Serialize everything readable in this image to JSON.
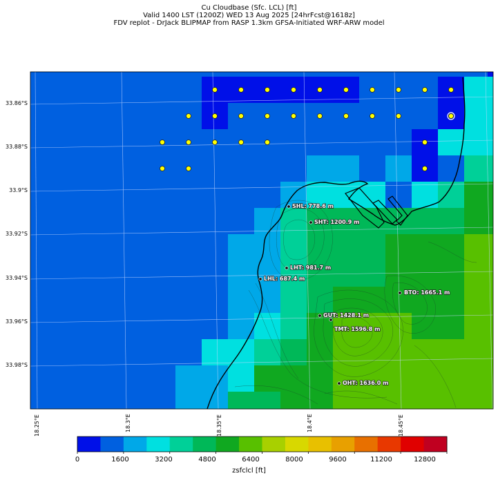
{
  "header": {
    "line1": "Cu Cloudbase (Sfc. LCL) [ft]",
    "line2": "Valid 1400 LST (1200Z) WED 13 Aug 2025 [24hrFcst@1618z]",
    "line3": "FDV replot - DrJack BLIPMAP from RASP 1.3km GFSA-Initiated WRF-ARW model"
  },
  "axes": {
    "lat_labels": [
      "33.86°S",
      "33.88°S",
      "33.9°S",
      "33.92°S",
      "33.94°S",
      "33.96°S",
      "33.98°S"
    ],
    "lon_labels": [
      "18.25°E",
      "18.3°E",
      "18.35°E",
      "18.4°E",
      "18.45°E"
    ]
  },
  "stations": [
    {
      "label": "SHL: 778.6 m"
    },
    {
      "label": "SHT: 1200.9 m"
    },
    {
      "label": "LHT: 981.7 m"
    },
    {
      "label": "LHL: 687.4 m"
    },
    {
      "label": "BTO: 1665.1 m"
    },
    {
      "label": "GUT: 1428.1 m"
    },
    {
      "label": "TMT: 1596.8 m"
    },
    {
      "label": "OHT: 1636.0 m"
    }
  ],
  "colorbar": {
    "ticks": [
      "0",
      "1600",
      "3200",
      "4800",
      "6400",
      "8000",
      "9600",
      "11200",
      "12800"
    ],
    "label": "zsfclcl [ft]",
    "colors": [
      "#0010e8",
      "#0060e0",
      "#00a8e8",
      "#00e0e0",
      "#00d098",
      "#00b858",
      "#10a820",
      "#58c000",
      "#a8d000",
      "#d8d800",
      "#e8c000",
      "#e8a000",
      "#e87000",
      "#e83800",
      "#e00000",
      "#c00020"
    ]
  }
}
